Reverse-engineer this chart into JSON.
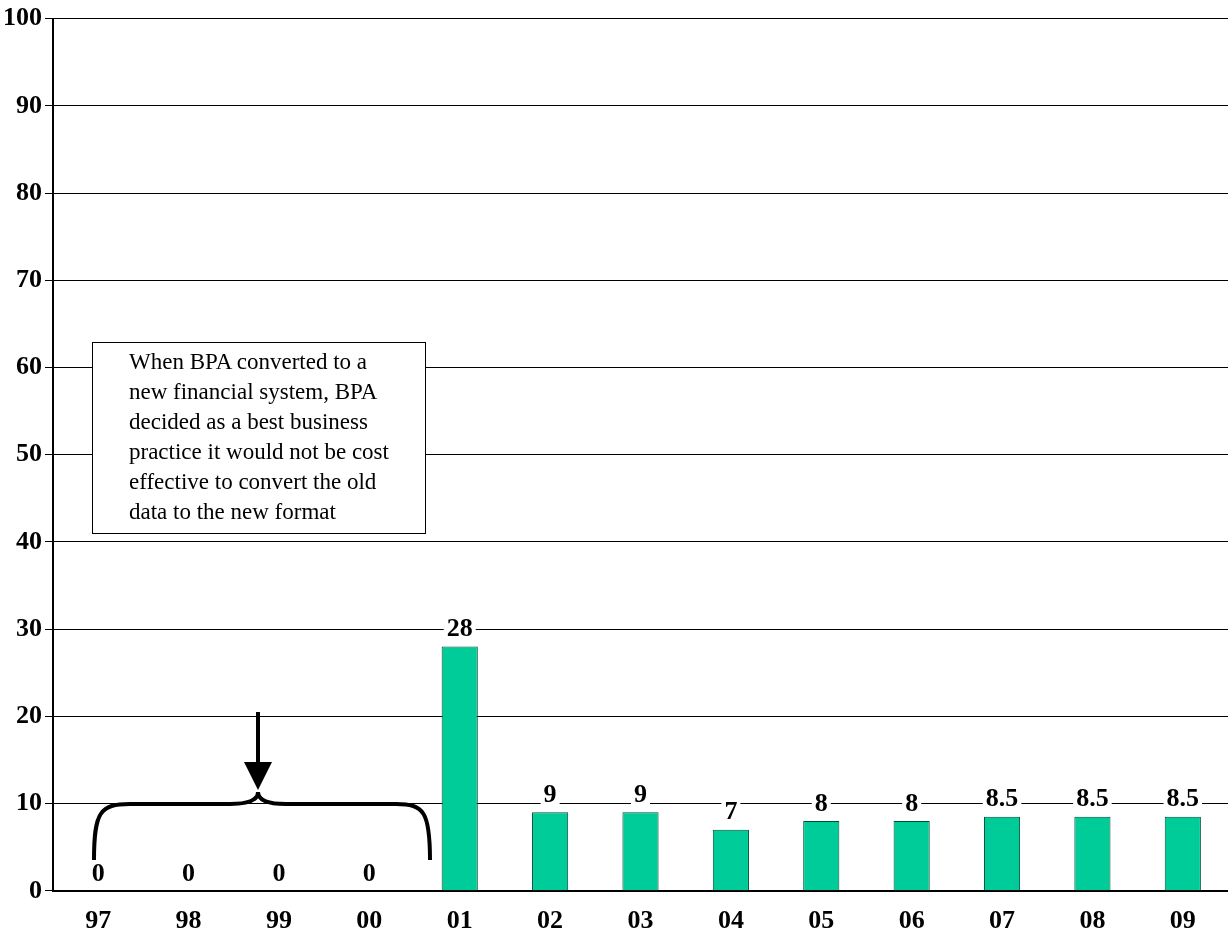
{
  "chart_data": {
    "type": "bar",
    "categories": [
      "97",
      "98",
      "99",
      "00",
      "01",
      "02",
      "03",
      "04",
      "05",
      "06",
      "07",
      "08",
      "09"
    ],
    "values": [
      0,
      0,
      0,
      0,
      28,
      9,
      9,
      7,
      8,
      8,
      8.5,
      8.5,
      8.5
    ],
    "color": "#00cc99",
    "ylim": [
      0,
      100
    ],
    "yticks": [
      0,
      10,
      20,
      30,
      40,
      50,
      60,
      70,
      80,
      90,
      100
    ],
    "grid": "y",
    "legend": false,
    "data_labels": true,
    "annotations": [
      "When BPA converted to a new financial system, BPA decided as a best business practice it would not be cost effective to convert the old data to the new format"
    ]
  }
}
